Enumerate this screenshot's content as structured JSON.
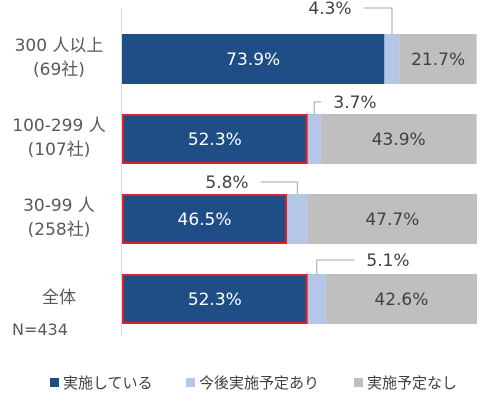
{
  "chart_data": {
    "type": "bar",
    "orientation": "horizontal",
    "stacked": "100%",
    "categories": [
      {
        "line1": "300 人以上",
        "line2": "(69社)"
      },
      {
        "line1": "100-299 人",
        "line2": "(107社)"
      },
      {
        "line1": "30-99 人",
        "line2": "(258社)"
      },
      {
        "line1": "全体",
        "line2": ""
      }
    ],
    "n_label": "N=434",
    "series": [
      {
        "name": "実施している",
        "color": "#1f4e87",
        "values": [
          73.9,
          52.3,
          46.5,
          52.3
        ],
        "labels": [
          "73.9%",
          "52.3%",
          "46.5%",
          "52.3%"
        ]
      },
      {
        "name": "今後実施予定あり",
        "color": "#b4c7e7",
        "values": [
          4.3,
          3.7,
          5.8,
          5.1
        ],
        "labels": [
          "4.3%",
          "3.7%",
          "5.8%",
          "5.1%"
        ]
      },
      {
        "name": "実施予定なし",
        "color": "#bfbfbf",
        "values": [
          21.7,
          43.9,
          47.7,
          42.6
        ],
        "labels": [
          "21.7%",
          "43.9%",
          "47.7%",
          "42.6%"
        ]
      }
    ],
    "highlighted_rows": [
      1,
      2,
      3
    ],
    "highlight_color": "#e0202a",
    "legend_position": "bottom",
    "grid": false
  }
}
